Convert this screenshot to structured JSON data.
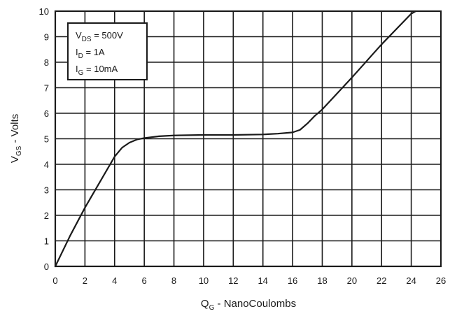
{
  "chart_data": {
    "type": "line",
    "title": "",
    "xlabel": {
      "main": "Q",
      "sub": "G",
      "rest": " - NanoCoulombs"
    },
    "ylabel": {
      "main": "V",
      "sub": "GS",
      "rest": " - Volts"
    },
    "xlim": [
      0,
      26
    ],
    "ylim": [
      0,
      10
    ],
    "x_ticks": [
      0,
      2,
      4,
      6,
      8,
      10,
      12,
      14,
      16,
      18,
      20,
      22,
      24,
      26
    ],
    "x_tick_labels": [
      "0",
      "2",
      "4",
      "6",
      "8",
      "10",
      "12",
      "14",
      "16",
      "18",
      "20",
      "22",
      "24",
      "26"
    ],
    "y_ticks": [
      0,
      1,
      2,
      3,
      4,
      5,
      6,
      7,
      8,
      9,
      10
    ],
    "y_tick_labels": [
      "0",
      "1",
      "2",
      "3",
      "4",
      "5",
      "6",
      "7",
      "8",
      "9",
      "10"
    ],
    "grid": true,
    "legend": {
      "placement": "top-left",
      "entries": [
        {
          "main": "V",
          "sub": "DS",
          "rest": " = 500V"
        },
        {
          "main": "I",
          "sub": "D",
          "rest": " = 1A"
        },
        {
          "main": "I",
          "sub": "G",
          "rest": " = 10mA"
        }
      ]
    },
    "series": [
      {
        "x": [
          0,
          1,
          2,
          3,
          4,
          4.5,
          5,
          5.5,
          6,
          7,
          8,
          10,
          12,
          14,
          15,
          16,
          16.5,
          17,
          17.5,
          18,
          20,
          22,
          24,
          24.3
        ],
        "y": [
          0,
          1.2,
          2.3,
          3.3,
          4.3,
          4.65,
          4.85,
          4.97,
          5.03,
          5.1,
          5.13,
          5.15,
          5.15,
          5.17,
          5.2,
          5.25,
          5.35,
          5.6,
          5.9,
          6.15,
          7.4,
          8.7,
          9.9,
          10
        ]
      }
    ],
    "colors": {
      "line": "#1a1a1a",
      "grid": "#1a1a1a",
      "background": "#ffffff"
    }
  }
}
